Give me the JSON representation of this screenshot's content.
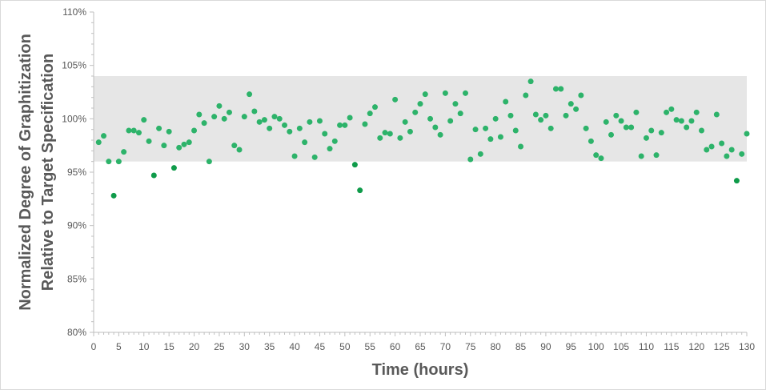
{
  "chart_data": {
    "type": "scatter",
    "title": "",
    "xlabel": "Time (hours)",
    "ylabel_line1": "Normalized Degree of Graphitization",
    "ylabel_line2": "Relative to Target Specification",
    "xlim": [
      0,
      130
    ],
    "ylim": [
      80,
      110
    ],
    "x_ticks": [
      0,
      5,
      10,
      15,
      20,
      25,
      30,
      35,
      40,
      45,
      50,
      55,
      60,
      65,
      70,
      75,
      80,
      85,
      90,
      95,
      100,
      105,
      110,
      115,
      120,
      125,
      130
    ],
    "x_tick_labels": [
      "0",
      "5",
      "10",
      "15",
      "20",
      "25",
      "30",
      "35",
      "40",
      "45",
      "50",
      "55",
      "60",
      "65",
      "70",
      "75",
      "80",
      "85",
      "90",
      "95",
      "100",
      "105",
      "110",
      "115",
      "120",
      "125",
      "130"
    ],
    "y_ticks": [
      80,
      85,
      90,
      95,
      100,
      105,
      110
    ],
    "y_tick_labels": [
      "80%",
      "85%",
      "90%",
      "95%",
      "100%",
      "105%",
      "110%"
    ],
    "spec_band": {
      "low": 96,
      "high": 104,
      "color": "#e6e6e6"
    },
    "grid": false,
    "legend": "none",
    "colors": {
      "in_spec": "#2db36a",
      "out_of_spec": "#0f9b4a",
      "axis": "#bfbfbf",
      "text": "#595959"
    },
    "series": [
      {
        "x": [
          1,
          2,
          3,
          4,
          5,
          6,
          7,
          8,
          9,
          10,
          11,
          12,
          13,
          14,
          15,
          16,
          17,
          18,
          19,
          20,
          21,
          22,
          23,
          24,
          25,
          26,
          27,
          28,
          29,
          30,
          31,
          32,
          33,
          34,
          35,
          36,
          37,
          38,
          39,
          40,
          41,
          42,
          43,
          44,
          45,
          46,
          47,
          48,
          49,
          50,
          51,
          52,
          53,
          54,
          55,
          56,
          57,
          58,
          59,
          60,
          61,
          62,
          63,
          64,
          65,
          66,
          67,
          68,
          69,
          70,
          71,
          72,
          73,
          74,
          75,
          76,
          77,
          78,
          79,
          80,
          81,
          82,
          83,
          84,
          85,
          86,
          87,
          88,
          89,
          90,
          91,
          92,
          93,
          94,
          95,
          96,
          97,
          98,
          99,
          100,
          101,
          102,
          103,
          104,
          105,
          106,
          107,
          108,
          109,
          110,
          111,
          112,
          113,
          114,
          115,
          116,
          117,
          118,
          119,
          120,
          121,
          122,
          123,
          124,
          125,
          126,
          127,
          128,
          129,
          130
        ],
        "y": [
          97.8,
          98.4,
          96.0,
          92.8,
          96.0,
          96.9,
          98.9,
          98.9,
          98.7,
          99.9,
          97.9,
          94.7,
          99.1,
          97.5,
          98.8,
          95.4,
          97.3,
          97.6,
          97.8,
          98.9,
          100.4,
          99.6,
          96.0,
          100.2,
          101.2,
          100.0,
          100.6,
          97.5,
          97.1,
          100.2,
          102.3,
          100.7,
          99.7,
          99.9,
          99.1,
          100.2,
          100.0,
          99.4,
          98.8,
          96.5,
          99.1,
          97.8,
          99.7,
          96.4,
          99.8,
          98.6,
          97.2,
          97.9,
          99.4,
          99.4,
          100.1,
          95.7,
          93.3,
          99.5,
          100.5,
          101.1,
          98.2,
          98.7,
          98.6,
          101.8,
          98.2,
          99.7,
          98.8,
          100.6,
          101.4,
          102.3,
          100.0,
          99.2,
          98.5,
          102.4,
          99.8,
          101.4,
          100.5,
          102.4,
          96.2,
          99.0,
          96.7,
          99.1,
          98.1,
          100.0,
          98.3,
          101.6,
          100.3,
          98.9,
          97.4,
          102.2,
          103.5,
          100.4,
          99.9,
          100.3,
          99.1,
          102.8,
          102.8,
          100.3,
          101.4,
          100.9,
          102.2,
          99.1,
          97.9,
          96.6,
          96.3,
          99.7,
          98.5,
          100.3,
          99.8,
          99.2,
          99.2,
          100.6,
          96.5,
          98.2,
          98.9,
          96.6,
          98.7,
          100.6,
          100.9,
          99.9,
          99.8,
          99.2,
          99.8,
          100.6,
          98.9,
          97.1,
          97.4,
          100.4,
          97.7,
          96.5,
          97.1,
          94.2,
          96.7,
          98.6
        ]
      }
    ]
  }
}
